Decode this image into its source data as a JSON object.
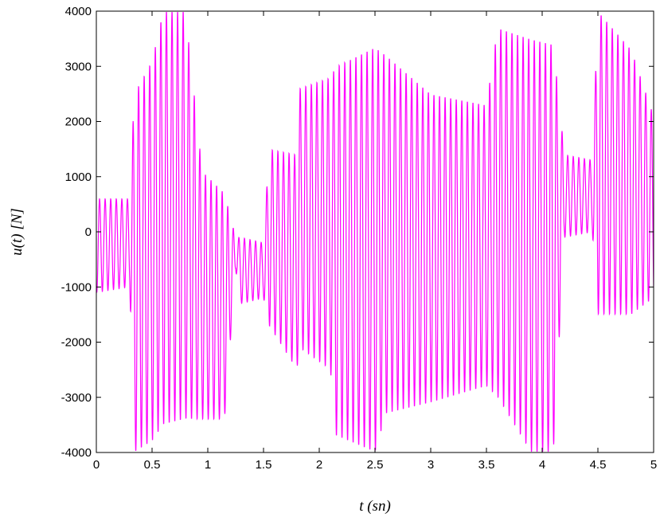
{
  "colors": {
    "series": "#ff00ff",
    "axes": "#000000",
    "background": "#ffffff"
  },
  "chart_data": {
    "type": "line",
    "title": "",
    "xlabel": "t (sn)",
    "ylabel": "u(t)  [N]",
    "xlim": [
      0,
      5
    ],
    "ylim": [
      -4000,
      4000
    ],
    "grid": false,
    "x_ticks": [
      0,
      0.5,
      1,
      1.5,
      2,
      2.5,
      3,
      3.5,
      4,
      4.5,
      5
    ],
    "x_tick_labels": [
      "0",
      "0.5",
      "1",
      "1.5",
      "2",
      "2.5",
      "3",
      "3.5",
      "4",
      "4.5",
      "5"
    ],
    "y_ticks": [
      -4000,
      -3000,
      -2000,
      -1000,
      0,
      1000,
      2000,
      3000,
      4000
    ],
    "y_tick_labels": [
      "-4000",
      "-3000",
      "-2000",
      "-1000",
      "0",
      "1000",
      "2000",
      "3000",
      "4000"
    ],
    "series": [
      {
        "color": "#ff00ff",
        "oscillation_hz": 20,
        "envelope": [
          {
            "t": 0.0,
            "max": 600,
            "min": -1100
          },
          {
            "t": 0.3,
            "max": 600,
            "min": -1000
          },
          {
            "t": 0.34,
            "max": 2500,
            "min": -4000
          },
          {
            "t": 0.5,
            "max": 3100,
            "min": -3800
          },
          {
            "t": 0.6,
            "max": 4000,
            "min": -3500
          },
          {
            "t": 0.8,
            "max": 4000,
            "min": -3400
          },
          {
            "t": 0.95,
            "max": 1100,
            "min": -3400
          },
          {
            "t": 1.15,
            "max": 700,
            "min": -3400
          },
          {
            "t": 1.25,
            "max": -100,
            "min": -700
          },
          {
            "t": 1.3,
            "max": -100,
            "min": -1300
          },
          {
            "t": 1.5,
            "max": -200,
            "min": -1200
          },
          {
            "t": 1.55,
            "max": 1500,
            "min": -1700
          },
          {
            "t": 1.8,
            "max": 1400,
            "min": -2500
          },
          {
            "t": 1.82,
            "max": 2600,
            "min": -2100
          },
          {
            "t": 2.1,
            "max": 2800,
            "min": -2500
          },
          {
            "t": 2.15,
            "max": 3000,
            "min": -3700
          },
          {
            "t": 2.5,
            "max": 3350,
            "min": -4000
          },
          {
            "t": 2.6,
            "max": 3200,
            "min": -3300
          },
          {
            "t": 3.0,
            "max": 2500,
            "min": -3100
          },
          {
            "t": 3.5,
            "max": 2300,
            "min": -2800
          },
          {
            "t": 3.6,
            "max": 3700,
            "min": -3000
          },
          {
            "t": 3.9,
            "max": 3500,
            "min": -4000
          },
          {
            "t": 4.1,
            "max": 3400,
            "min": -4000
          },
          {
            "t": 4.2,
            "max": 1400,
            "min": -100
          },
          {
            "t": 4.45,
            "max": 1300,
            "min": 0
          },
          {
            "t": 4.5,
            "max": 4000,
            "min": -1500
          },
          {
            "t": 4.8,
            "max": 3300,
            "min": -1500
          },
          {
            "t": 5.0,
            "max": 2100,
            "min": -1200
          }
        ]
      }
    ]
  }
}
